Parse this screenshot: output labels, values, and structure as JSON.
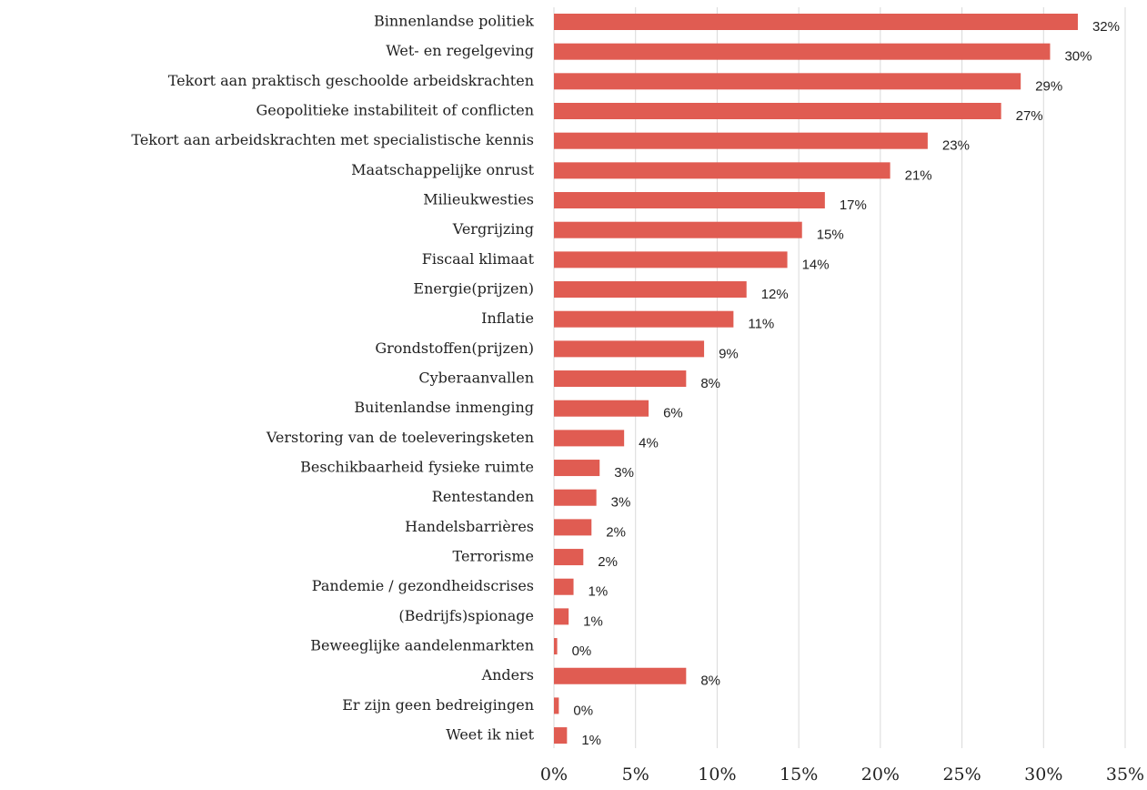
{
  "chart_data": {
    "type": "barh",
    "categories": [
      "Binnenlandse politiek",
      "Wet- en regelgeving",
      "Tekort aan praktisch geschoolde arbeidskrachten",
      "Geopolitieke instabiliteit of conflicten",
      "Tekort aan arbeidskrachten met specialistische kennis",
      "Maatschappelijke onrust",
      "Milieukwesties",
      "Vergrijzing",
      "Fiscaal klimaat",
      "Energie(prijzen)",
      "Inflatie",
      "Grondstoffen(prijzen)",
      "Cyberaanvallen",
      "Buitenlandse inmenging",
      "Verstoring van de toeleveringsketen",
      "Beschikbaarheid fysieke ruimte",
      "Rentestanden",
      "Handelsbarrières",
      "Terrorisme",
      "Pandemie / gezondheidscrises",
      "(Bedrijfs)spionage",
      "Beweeglijke aandelenmarkten",
      "Anders",
      "Er zijn geen bedreigingen",
      "Weet ik niet"
    ],
    "values": [
      32.1,
      30.4,
      28.6,
      27.4,
      22.9,
      20.6,
      16.6,
      15.2,
      14.3,
      11.8,
      11.0,
      9.2,
      8.1,
      5.8,
      4.3,
      2.8,
      2.6,
      2.3,
      1.8,
      1.2,
      0.9,
      0.2,
      8.1,
      0.3,
      0.8
    ],
    "value_labels": [
      "32%",
      "30%",
      "29%",
      "27%",
      "23%",
      "21%",
      "17%",
      "15%",
      "14%",
      "12%",
      "11%",
      "9%",
      "8%",
      "6%",
      "4%",
      "3%",
      "3%",
      "2%",
      "2%",
      "1%",
      "1%",
      "0%",
      "8%",
      "0%",
      "1%"
    ],
    "color": "#e05c52",
    "xlim": [
      0,
      35
    ],
    "xticks": [
      {
        "value": 0,
        "label": "0%"
      },
      {
        "value": 5,
        "label": "5%"
      },
      {
        "value": 10,
        "label": "10%"
      },
      {
        "value": 15,
        "label": "15%"
      },
      {
        "value": 20,
        "label": "20%"
      },
      {
        "value": 25,
        "label": "25%"
      },
      {
        "value": 30,
        "label": "30%"
      },
      {
        "value": 35,
        "label": "35%"
      }
    ],
    "grid": true
  }
}
